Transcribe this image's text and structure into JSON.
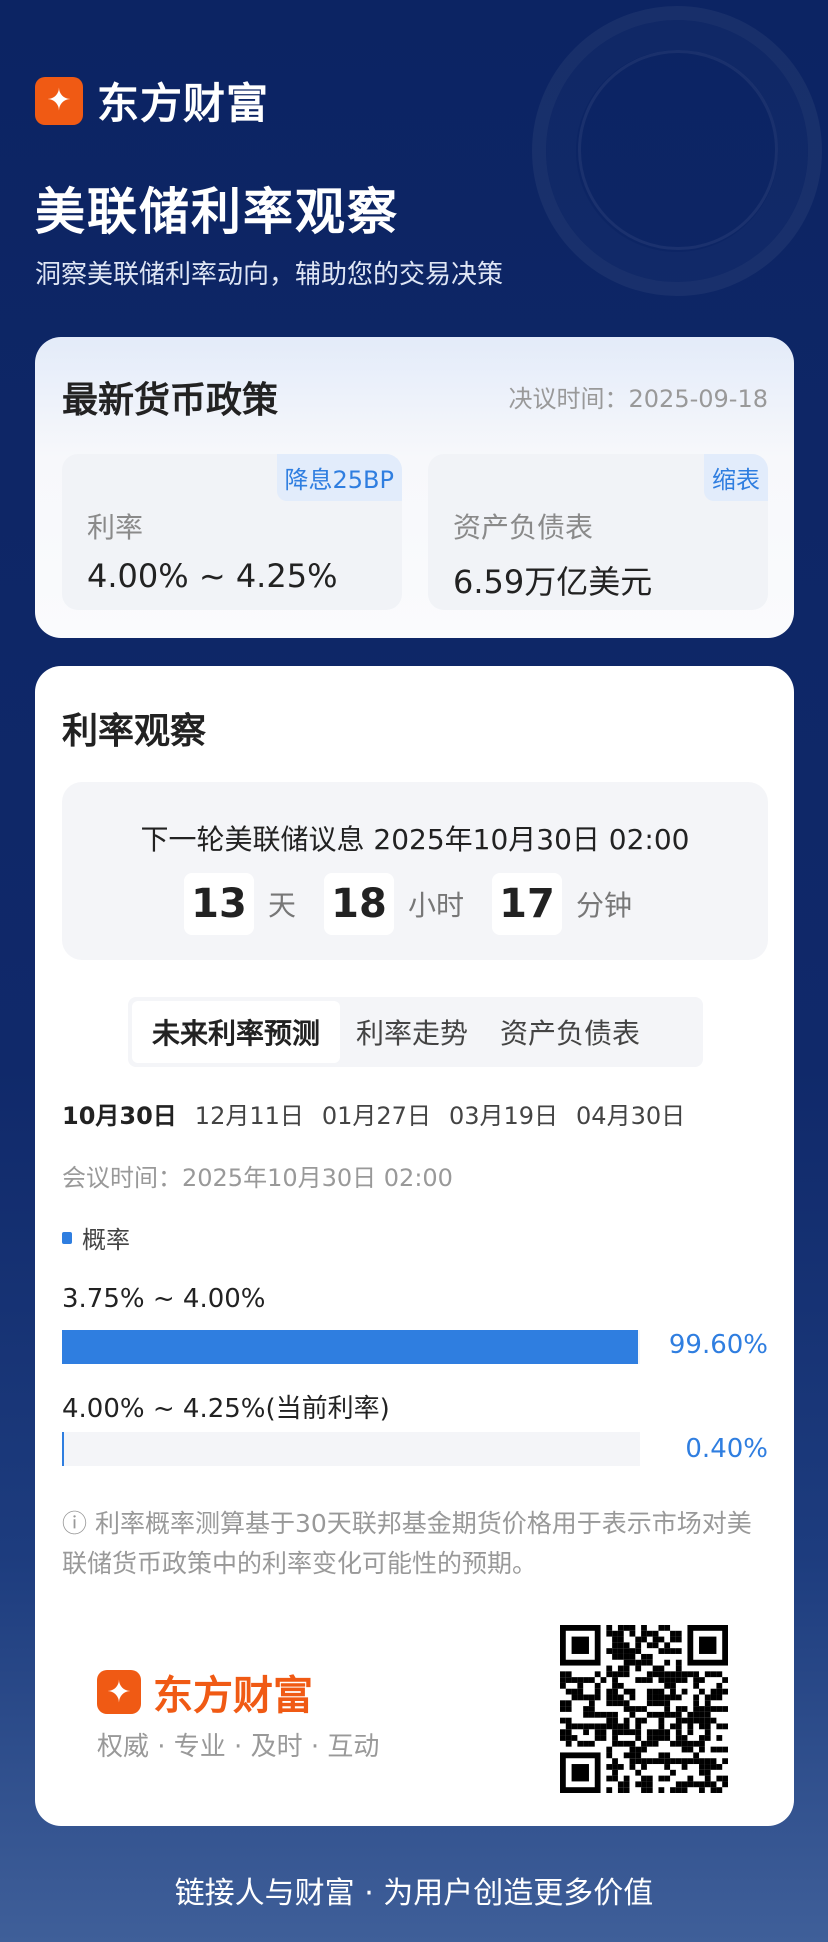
{
  "header": {
    "logo_text": "东方财富",
    "title": "美联储利率观察",
    "subtitle": "洞察美联储利率动向，辅助您的交易决策"
  },
  "policy": {
    "heading": "最新货币政策",
    "decision_time": "决议时间：2025-09-18",
    "rate": {
      "label": "利率",
      "value": "4.00% ~ 4.25%",
      "badge": "降息25BP"
    },
    "balance": {
      "label": "资产负债表",
      "value": "6.59万亿美元",
      "badge": "缩表"
    }
  },
  "watch": {
    "heading": "利率观察",
    "countdown": {
      "line": "下一轮美联储议息 2025年10月30日 02:00",
      "days": "13",
      "days_unit": "天",
      "hours": "18",
      "hours_unit": "小时",
      "minutes": "17",
      "minutes_unit": "分钟"
    },
    "tabs": [
      {
        "label": "未来利率预测",
        "active": true
      },
      {
        "label": "利率走势"
      },
      {
        "label": "资产负债表"
      }
    ],
    "dates": [
      "10月30日",
      "12月11日",
      "01月27日",
      "03月19日",
      "04月30日"
    ],
    "meeting_time": "会议时间：2025年10月30日 02:00",
    "legend": "概率",
    "accent": "#2f7ee0",
    "probabilities": [
      {
        "range": "3.75% ~ 4.00%",
        "value": 99.6,
        "label": "99.60%"
      },
      {
        "range": "4.00% ~ 4.25%(当前利率)",
        "value": 0.4,
        "label": "0.40%"
      }
    ],
    "note_icon": "info-icon",
    "note": "利率概率测算基于30天联邦基金期货价格用于表示市场对美联储货币政策中的利率变化可能性的预期。"
  },
  "brand": {
    "logo_text": "东方财富",
    "tagline": "权威 · 专业 · 及时 · 互动",
    "brand_color": "#f05a14"
  },
  "footer": {
    "slogan": "链接人与财富 · 为用户创造更多价值"
  }
}
